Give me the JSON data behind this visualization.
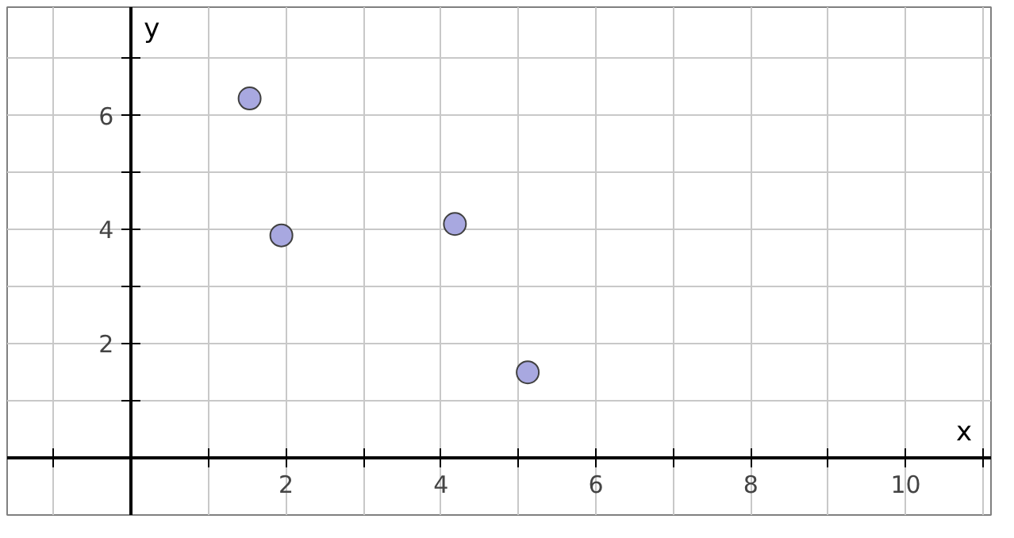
{
  "chart_data": {
    "type": "scatter",
    "xlabel": "x",
    "ylabel": "y",
    "x": [
      1.53,
      1.94,
      4.18,
      5.12
    ],
    "values": [
      6.3,
      3.9,
      4.1,
      1.5
    ],
    "color": "#a8a8e0",
    "xlim": [
      -1.6,
      11.1
    ],
    "ylim": [
      -1,
      7.9
    ],
    "xticks": [
      {
        "value": -1,
        "label": null
      },
      {
        "value": 1,
        "label": null
      },
      2,
      {
        "value": 3,
        "label": null
      },
      4,
      {
        "value": 5,
        "label": null
      },
      6,
      {
        "value": 7,
        "label": null
      },
      8,
      {
        "value": 9,
        "label": null
      },
      10,
      {
        "value": 11,
        "label": null
      }
    ],
    "yticks": [
      {
        "value": 1,
        "label": null
      },
      2,
      {
        "value": 3,
        "label": null
      },
      4,
      {
        "value": 5,
        "label": null
      },
      6,
      {
        "value": 7,
        "label": null
      }
    ],
    "grid": true,
    "marker": "circle"
  }
}
